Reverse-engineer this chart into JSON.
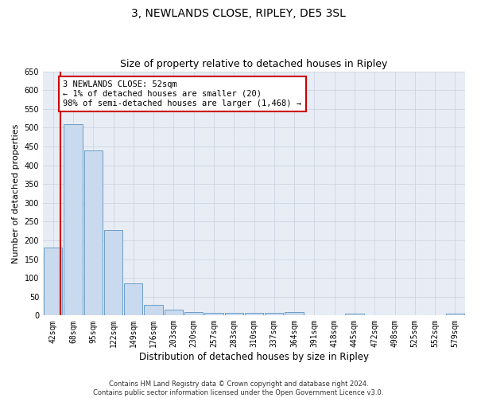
{
  "title": "3, NEWLANDS CLOSE, RIPLEY, DE5 3SL",
  "subtitle": "Size of property relative to detached houses in Ripley",
  "xlabel": "Distribution of detached houses by size in Ripley",
  "ylabel": "Number of detached properties",
  "categories": [
    "42sqm",
    "68sqm",
    "95sqm",
    "122sqm",
    "149sqm",
    "176sqm",
    "203sqm",
    "230sqm",
    "257sqm",
    "283sqm",
    "310sqm",
    "337sqm",
    "364sqm",
    "391sqm",
    "418sqm",
    "445sqm",
    "472sqm",
    "498sqm",
    "525sqm",
    "552sqm",
    "579sqm"
  ],
  "values": [
    180,
    510,
    440,
    228,
    85,
    28,
    15,
    9,
    7,
    7,
    7,
    7,
    9,
    0,
    0,
    6,
    0,
    0,
    0,
    0,
    6
  ],
  "bar_color": "#c9d9ee",
  "bar_edge_color": "#6a9fc8",
  "annotation_text": "3 NEWLANDS CLOSE: 52sqm\n← 1% of detached houses are smaller (20)\n98% of semi-detached houses are larger (1,468) →",
  "annotation_box_facecolor": "#ffffff",
  "annotation_box_edgecolor": "#cc0000",
  "vline_color": "#cc0000",
  "vline_x": 0.38,
  "ylim": [
    0,
    650
  ],
  "yticks": [
    0,
    50,
    100,
    150,
    200,
    250,
    300,
    350,
    400,
    450,
    500,
    550,
    600,
    650
  ],
  "footer": "Contains HM Land Registry data © Crown copyright and database right 2024.\nContains public sector information licensed under the Open Government Licence v3.0.",
  "grid_color": "#cdd5e3",
  "background_color": "#e8edf5",
  "title_fontsize": 10,
  "subtitle_fontsize": 9,
  "xlabel_fontsize": 8.5,
  "ylabel_fontsize": 8,
  "tick_fontsize": 7,
  "annotation_fontsize": 7.5,
  "footer_fontsize": 6
}
